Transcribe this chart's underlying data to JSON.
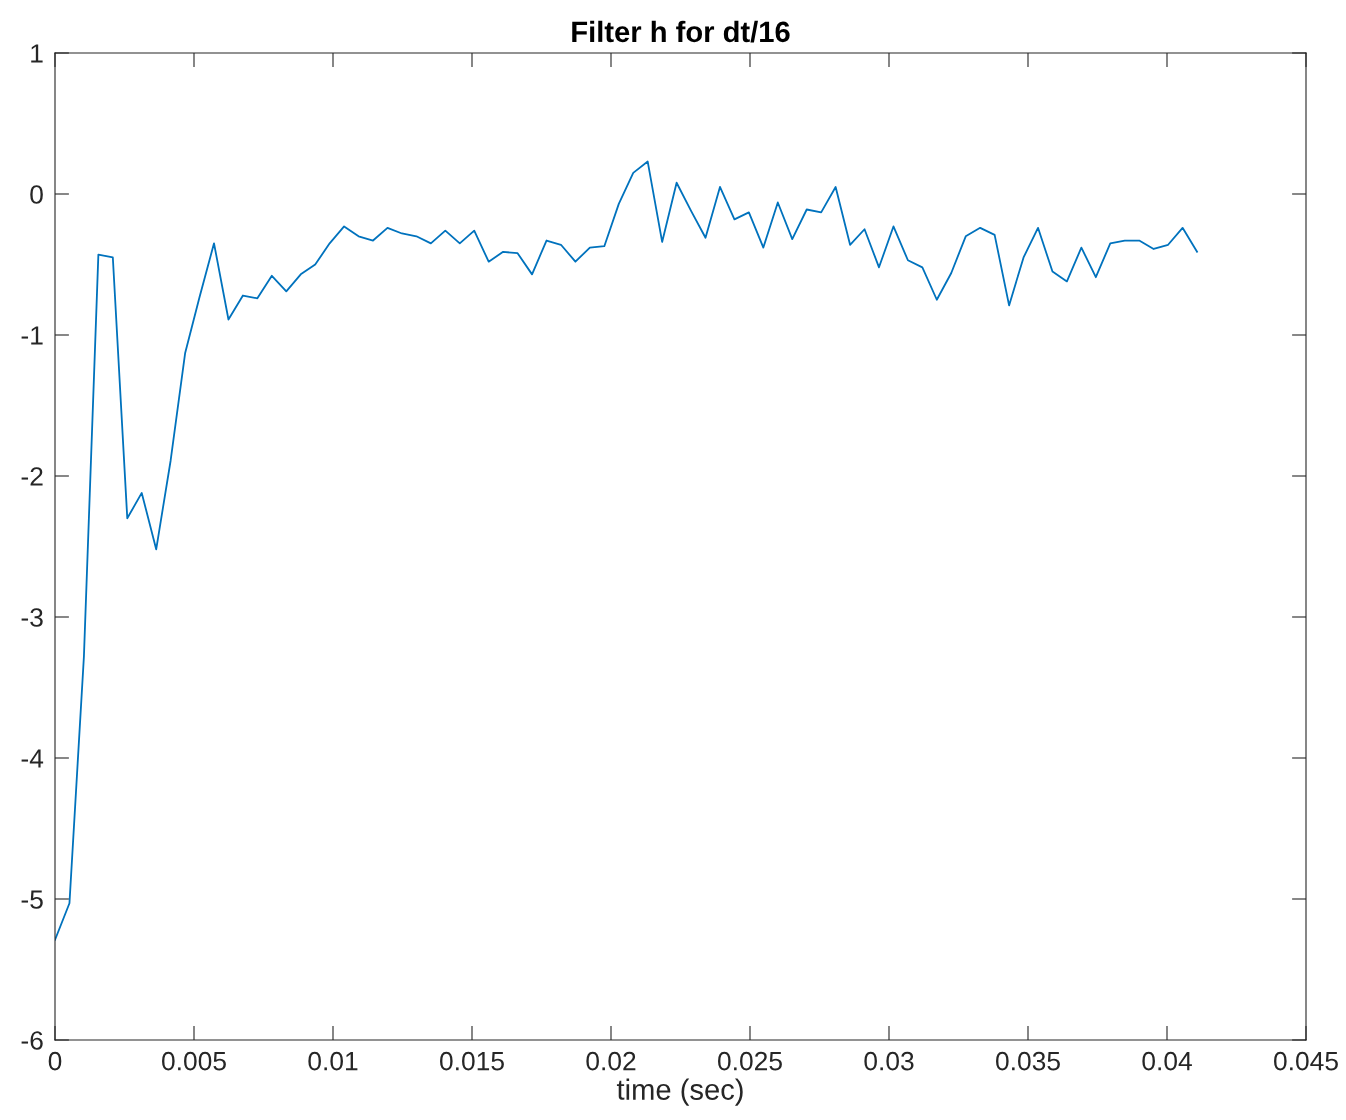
{
  "chart_data": {
    "type": "line",
    "title": "Filter h for dt/16",
    "xlabel": "time (sec)",
    "x": [
      0,
      0.00052,
      0.00104,
      0.00156,
      0.00208,
      0.0026,
      0.00312,
      0.00364,
      0.00416,
      0.00468,
      0.0052,
      0.00572,
      0.00624,
      0.00676,
      0.00728,
      0.0078,
      0.00832,
      0.00884,
      0.00936,
      0.00988,
      0.0104,
      0.01092,
      0.01144,
      0.01196,
      0.01248,
      0.013,
      0.01352,
      0.01404,
      0.01456,
      0.01508,
      0.0156,
      0.01612,
      0.01664,
      0.01716,
      0.01768,
      0.0182,
      0.01872,
      0.01924,
      0.01976,
      0.02028,
      0.0208,
      0.02132,
      0.02184,
      0.02236,
      0.02288,
      0.0234,
      0.02392,
      0.02444,
      0.02496,
      0.02548,
      0.026,
      0.02652,
      0.02704,
      0.02756,
      0.02808,
      0.0286,
      0.02912,
      0.02964,
      0.03016,
      0.03068,
      0.0312,
      0.03172,
      0.03224,
      0.03276,
      0.03328,
      0.0338,
      0.03432,
      0.03484,
      0.03536,
      0.03588,
      0.0364,
      0.03692,
      0.03744,
      0.03796,
      0.03848,
      0.039,
      0.03952,
      0.04004,
      0.04056,
      0.04108
    ],
    "series": [
      {
        "color": "#0072bd",
        "values": [
          -5.29,
          -5.03,
          -3.28,
          -0.43,
          -0.45,
          -2.3,
          -2.12,
          -2.52,
          -1.89,
          -1.13,
          -0.73,
          -0.35,
          -0.89,
          -0.72,
          -0.74,
          -0.58,
          -0.69,
          -0.57,
          -0.5,
          -0.35,
          -0.23,
          -0.3,
          -0.33,
          -0.24,
          -0.28,
          -0.3,
          -0.35,
          -0.26,
          -0.35,
          -0.26,
          -0.48,
          -0.41,
          -0.42,
          -0.57,
          -0.33,
          -0.36,
          -0.48,
          -0.38,
          -0.37,
          -0.07,
          0.15,
          0.23,
          -0.34,
          0.08,
          -0.12,
          -0.31,
          0.05,
          -0.18,
          -0.13,
          -0.38,
          -0.06,
          -0.32,
          -0.11,
          -0.13,
          0.05,
          -0.36,
          -0.25,
          -0.52,
          -0.23,
          -0.47,
          -0.52,
          -0.75,
          -0.56,
          -0.3,
          -0.24,
          -0.29,
          -0.79,
          -0.45,
          -0.24,
          -0.55,
          -0.62,
          -0.38,
          -0.59,
          -0.35,
          -0.33,
          -0.33,
          -0.39,
          -0.36,
          -0.24,
          -0.41
        ]
      }
    ],
    "xlim": [
      0,
      0.045
    ],
    "xticks": [
      0,
      0.005,
      0.01,
      0.015,
      0.02,
      0.025,
      0.03,
      0.035,
      0.04,
      0.045
    ],
    "ylim": [
      -6,
      1
    ],
    "yticks": [
      -6,
      -5,
      -4,
      -3,
      -2,
      -1,
      0,
      1
    ],
    "grid": false,
    "marker": "none",
    "line_style": "solid"
  }
}
